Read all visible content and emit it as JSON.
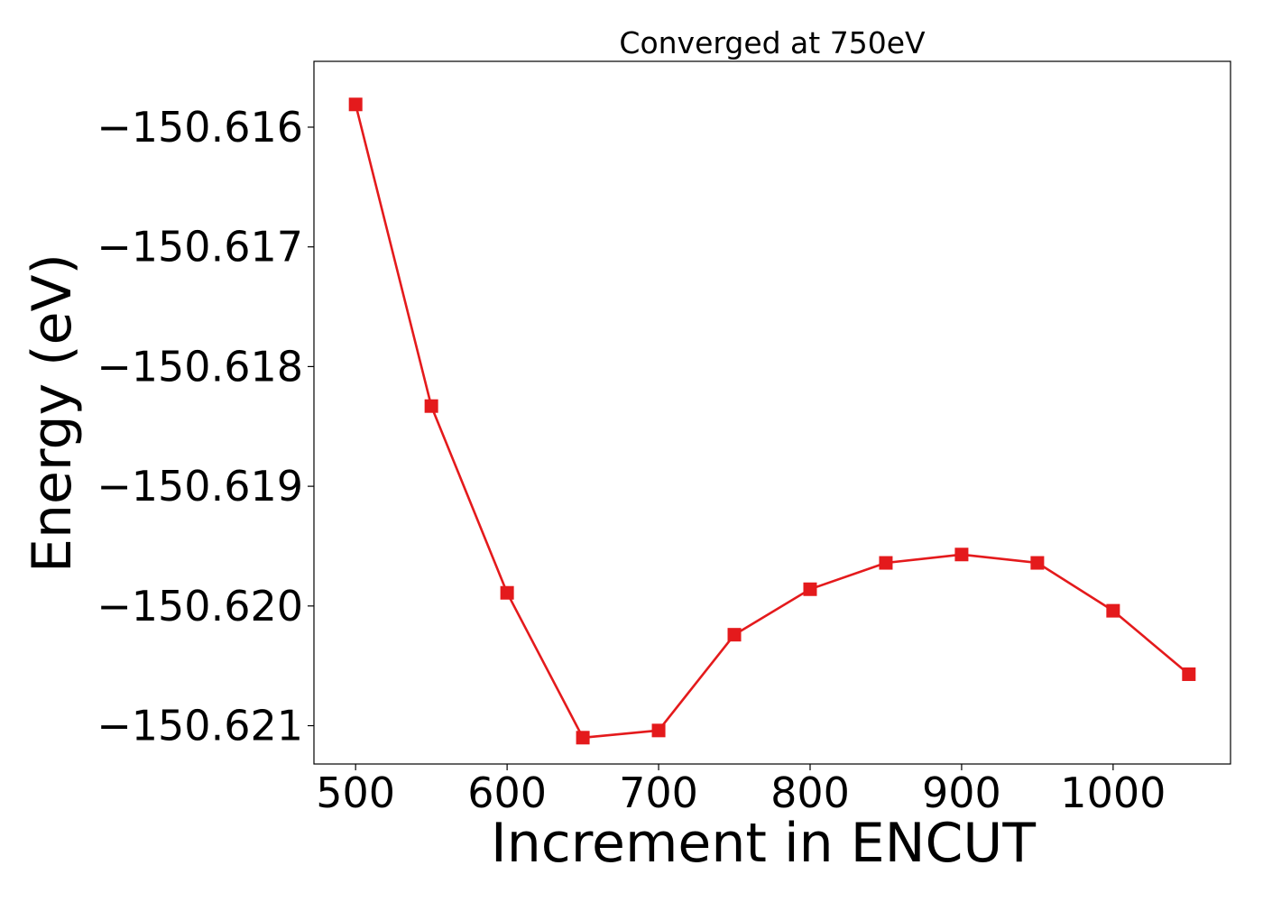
{
  "chart_data": {
    "type": "line",
    "title": "Converged at 750eV",
    "xlabel": "Increment in ENCUT",
    "ylabel": "Energy (eV)",
    "x_ticks": [
      500,
      600,
      700,
      800,
      900,
      1000
    ],
    "x_tick_labels": [
      "500",
      "600",
      "700",
      "800",
      "900",
      "1000"
    ],
    "y_ticks": [
      -150.616,
      -150.617,
      -150.618,
      -150.619,
      -150.62,
      -150.621
    ],
    "y_tick_labels": [
      "−150.616",
      "−150.617",
      "−150.618",
      "−150.619",
      "−150.620",
      "−150.621"
    ],
    "xlim": [
      472.5,
      1077.5
    ],
    "ylim": [
      -150.62132,
      -150.61545
    ],
    "grid": false,
    "series": [
      {
        "color": "#e41a1c",
        "marker": "square",
        "x": [
          500,
          550,
          600,
          650,
          700,
          750,
          800,
          850,
          900,
          950,
          1000,
          1050
        ],
        "y": [
          -150.61581,
          -150.61833,
          -150.61989,
          -150.6211,
          -150.62104,
          -150.62024,
          -150.61986,
          -150.61964,
          -150.61957,
          -150.61964,
          -150.62004,
          -150.62057
        ]
      }
    ]
  }
}
